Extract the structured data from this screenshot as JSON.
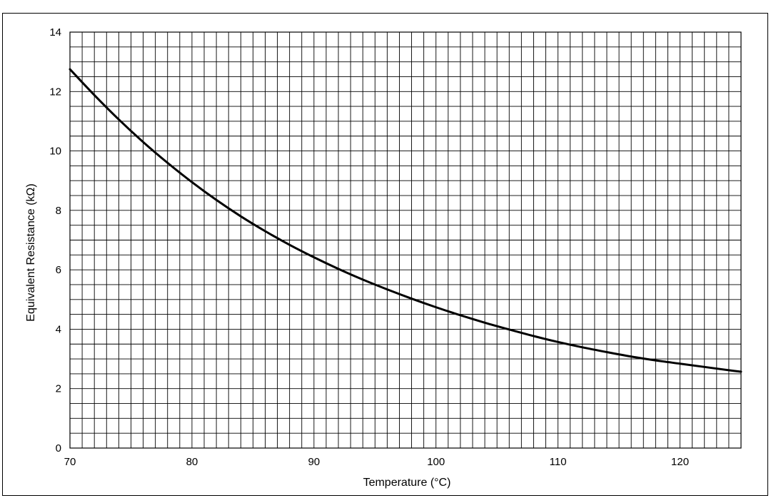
{
  "chart_data": {
    "type": "line",
    "title": "",
    "xlabel": "Temperature (°C)",
    "ylabel": "Equivalent Resistance (kΩ)",
    "xlim": [
      70,
      125
    ],
    "ylim": [
      0,
      14
    ],
    "x_ticks": [
      70,
      80,
      90,
      100,
      110,
      120
    ],
    "y_ticks": [
      0,
      2,
      4,
      6,
      8,
      10,
      12,
      14
    ],
    "grid": true,
    "legend": "none",
    "series": [
      {
        "color": "#000000",
        "x": [
          70,
          72,
          74,
          76,
          78,
          80,
          82,
          84,
          86,
          88,
          90,
          92,
          94,
          96,
          98,
          100,
          102,
          104,
          106,
          108,
          110,
          112,
          114,
          116,
          118,
          120,
          122,
          124,
          125
        ],
        "y": [
          12.75,
          11.88,
          11.06,
          10.3,
          9.6,
          8.95,
          8.35,
          7.8,
          7.3,
          6.84,
          6.42,
          6.03,
          5.67,
          5.34,
          5.03,
          4.74,
          4.47,
          4.22,
          3.99,
          3.77,
          3.57,
          3.39,
          3.23,
          3.08,
          2.95,
          2.84,
          2.73,
          2.62,
          2.57
        ]
      }
    ]
  }
}
